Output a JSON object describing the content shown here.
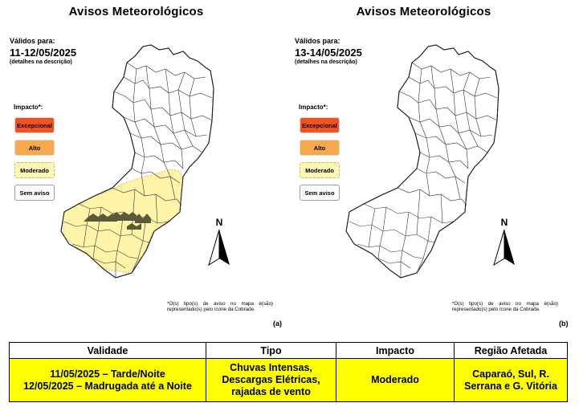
{
  "panels": [
    {
      "title": "Avisos Meteorológicos",
      "valid_label": "Válidos para:",
      "valid_date": "11-12/05/2025",
      "valid_note": "(detalhes na descrição)",
      "impact_title": "Impacto*:",
      "legend": [
        "Excepcional",
        "Alto",
        "Moderado",
        "Sem aviso"
      ],
      "north": "N",
      "footnote": "*O(s) tipo(s) de aviso no mapa é(são) representado(s) pelo ícone da Cobrade.",
      "letter": "(a)",
      "alert_level": "Moderado"
    },
    {
      "title": "Avisos Meteorológicos",
      "valid_label": "Válidos para:",
      "valid_date": "13-14/05/2025",
      "valid_note": "(detalhes na descrição)",
      "impact_title": "Impacto*:",
      "legend": [
        "Excepcional",
        "Alto",
        "Moderado",
        "Sem aviso"
      ],
      "north": "N",
      "footnote": "*O(s) tipo(s) de aviso no mapa é(são) representado(s) pelo ícone da Cobrade.",
      "letter": "(b)",
      "alert_level": "Sem aviso"
    }
  ],
  "colors": {
    "excepcional": "#f4511e",
    "alto": "#f9a94d",
    "moderado": "#fff7b8",
    "sem_aviso": "#ffffff",
    "table_highlight": "#ffff00"
  },
  "table": {
    "headers": [
      "Validade",
      "Tipo",
      "Impacto",
      "Região Afetada"
    ],
    "row": {
      "validade": [
        "11/05/2025 – Tarde/Noite",
        "12/05/2025 – Madrugada até a Noite"
      ],
      "tipo": [
        "Chuvas Intensas,",
        "Descargas Elétricas,",
        "rajadas de vento"
      ],
      "impacto": "Moderado",
      "regiao": [
        "Caparaó, Sul, R.",
        "Serrana e G. Vitória"
      ]
    }
  }
}
